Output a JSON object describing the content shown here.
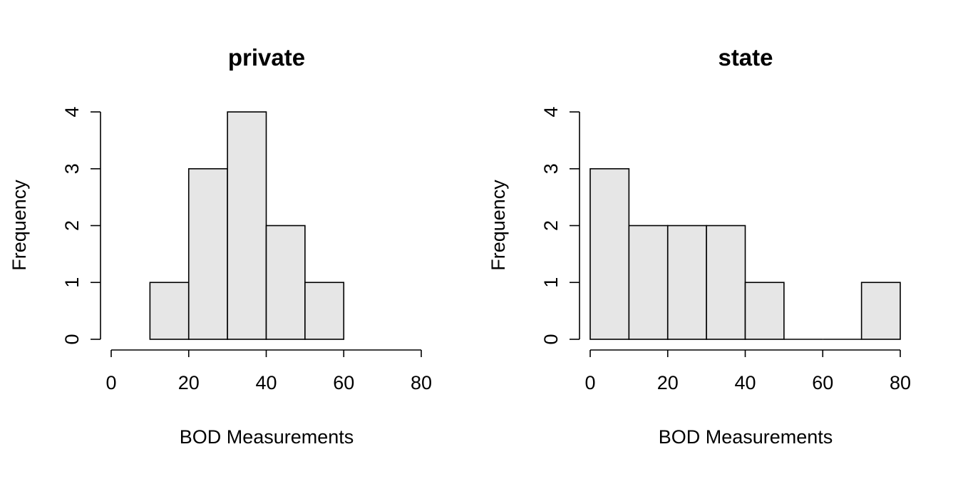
{
  "chart_data": [
    {
      "type": "bar",
      "title": "private",
      "xlabel": "BOD Measurements",
      "ylabel": "Frequency",
      "bins": [
        [
          10,
          20
        ],
        [
          20,
          30
        ],
        [
          30,
          40
        ],
        [
          40,
          50
        ],
        [
          50,
          60
        ]
      ],
      "values": [
        1,
        3,
        4,
        2,
        1
      ],
      "xlim": [
        0,
        80
      ],
      "ylim": [
        0,
        4
      ],
      "xticks": [
        "0",
        "20",
        "40",
        "60",
        "80"
      ],
      "yticks": [
        "0",
        "1",
        "2",
        "3",
        "4"
      ],
      "grid": false
    },
    {
      "type": "bar",
      "title": "state",
      "xlabel": "BOD Measurements",
      "ylabel": "Frequency",
      "bins": [
        [
          0,
          10
        ],
        [
          10,
          20
        ],
        [
          20,
          30
        ],
        [
          30,
          40
        ],
        [
          40,
          50
        ],
        [
          50,
          60
        ],
        [
          60,
          70
        ],
        [
          70,
          80
        ]
      ],
      "values": [
        3,
        2,
        2,
        2,
        1,
        0,
        0,
        1
      ],
      "xlim": [
        0,
        80
      ],
      "ylim": [
        0,
        4
      ],
      "xticks": [
        "0",
        "20",
        "40",
        "60",
        "80"
      ],
      "yticks": [
        "0",
        "1",
        "2",
        "3",
        "4"
      ],
      "grid": false
    }
  ]
}
